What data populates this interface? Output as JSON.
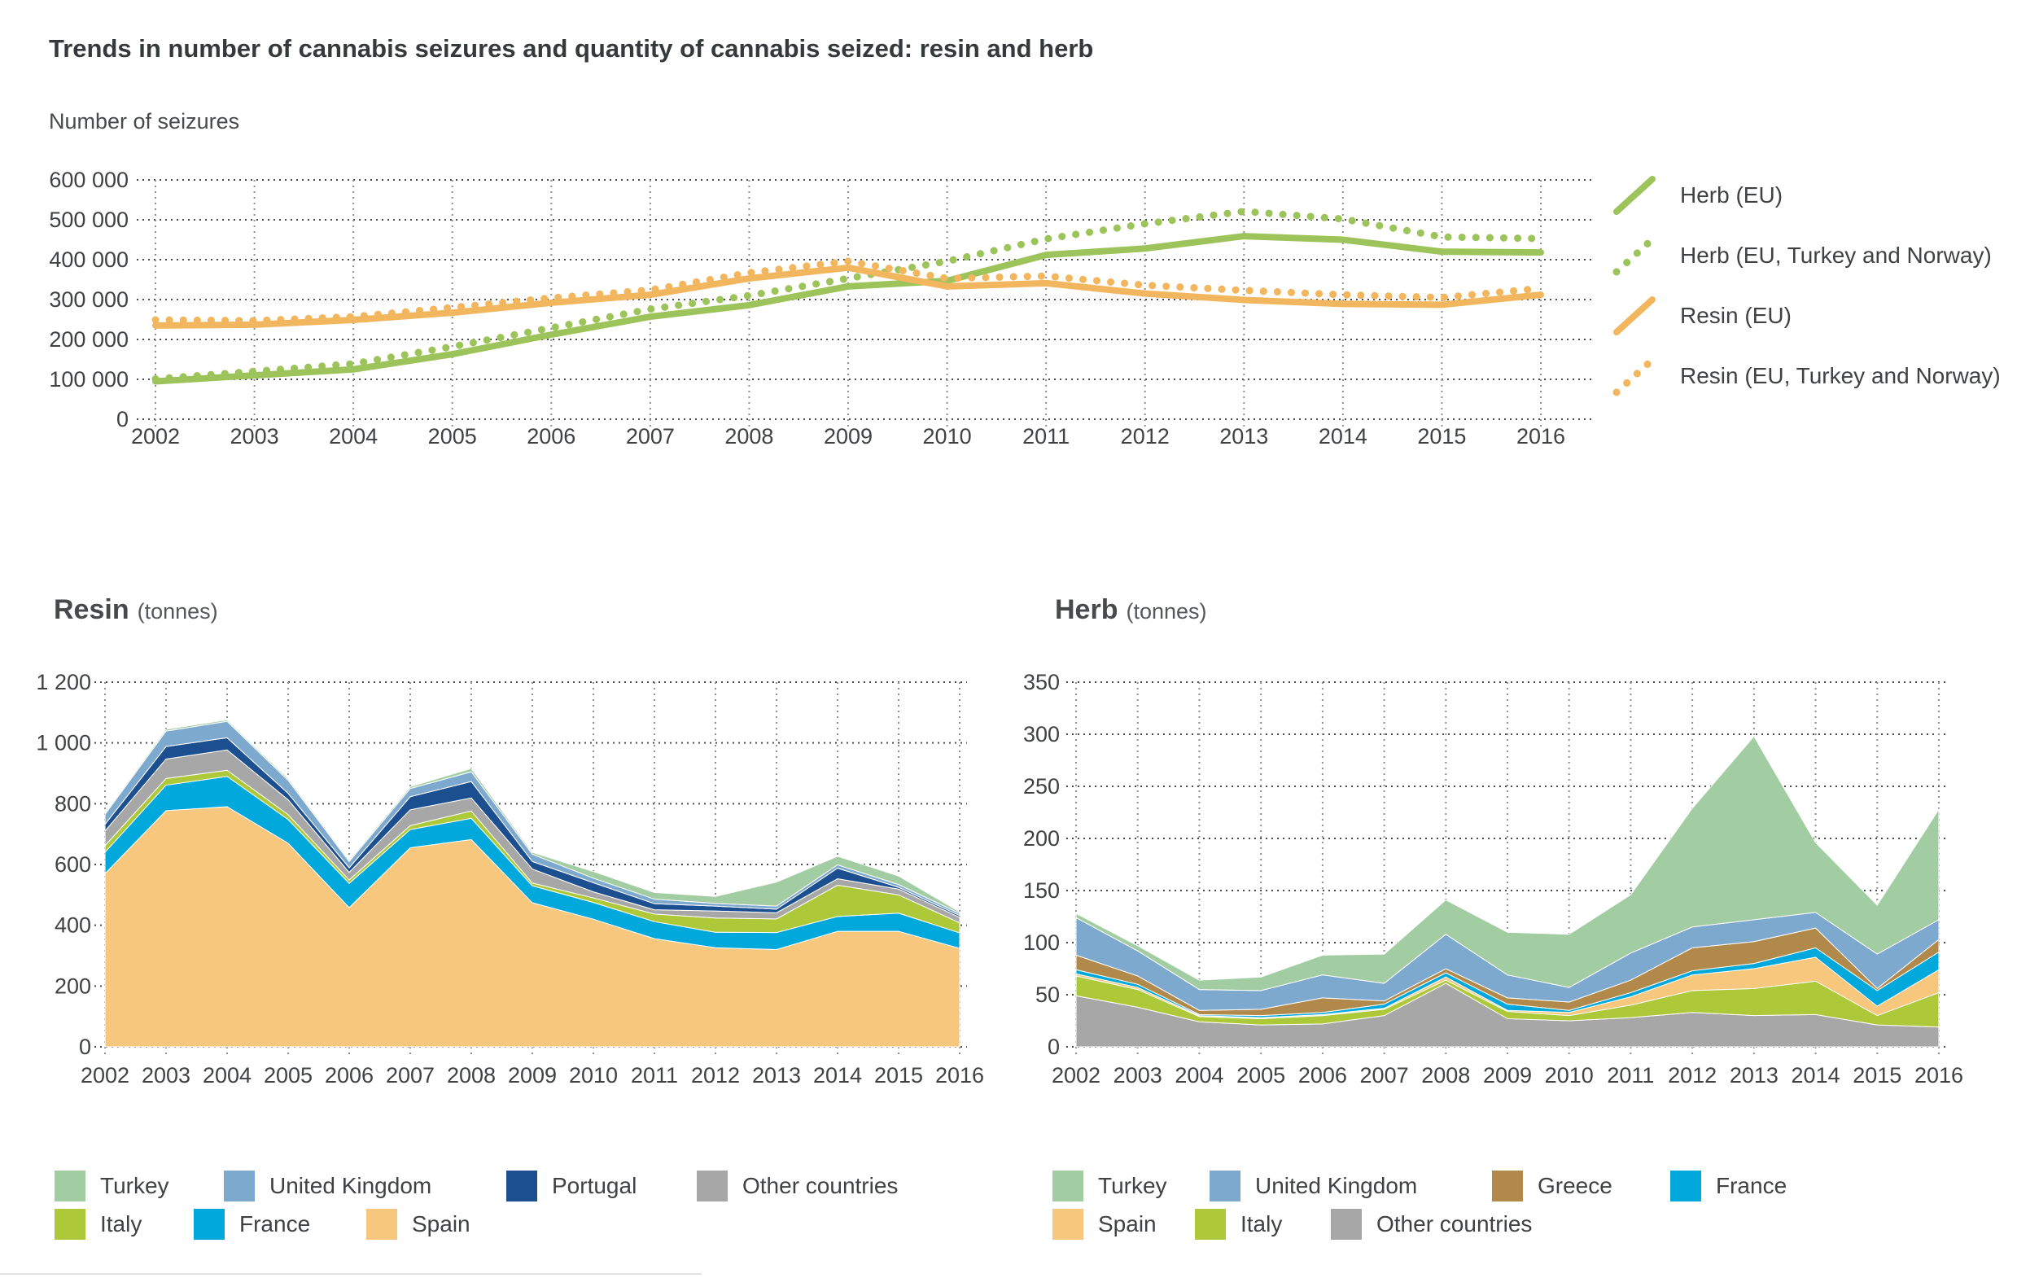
{
  "page": {
    "title": "Trends in number of cannabis seizures and quantity of cannabis seized: resin and herb"
  },
  "chart_data": [
    {
      "id": "seizures",
      "type": "line",
      "axis_label": "Number of seizures",
      "ylim": [
        0,
        600000
      ],
      "ytick_labels": [
        "600 000",
        "500 000",
        "400 000",
        "300 000",
        "200 000",
        "100 000",
        "0"
      ],
      "grid": "dotted",
      "legend_position": "right",
      "years": [
        2002,
        2003,
        2004,
        2005,
        2006,
        2007,
        2008,
        2009,
        2010,
        2011,
        2012,
        2013,
        2014,
        2015,
        2016
      ],
      "series": [
        {
          "name": "Herb (EU)",
          "line_style": "solid",
          "color": "#9dc45b",
          "values": [
            95000,
            110000,
            125000,
            163000,
            212000,
            257000,
            286000,
            333000,
            347000,
            412000,
            428000,
            459000,
            450000,
            420000,
            418000
          ]
        },
        {
          "name": "Herb (EU, Turkey and Norway)",
          "line_style": "dotted",
          "color": "#9dc45b",
          "values": [
            101000,
            120000,
            139000,
            182000,
            229000,
            276000,
            310000,
            353000,
            396000,
            452000,
            490000,
            521000,
            502000,
            457000,
            453000
          ]
        },
        {
          "name": "Resin (EU)",
          "line_style": "solid",
          "color": "#f2b65e",
          "values": [
            235000,
            237000,
            249000,
            267000,
            292000,
            312000,
            353000,
            380000,
            333000,
            341000,
            315000,
            299000,
            289000,
            287000,
            312000
          ]
        },
        {
          "name": "Resin (EU, Turkey and Norway)",
          "line_style": "dotted",
          "color": "#f2b65e",
          "values": [
            249000,
            247000,
            257000,
            280000,
            304000,
            324000,
            367000,
            396000,
            353000,
            359000,
            336000,
            323000,
            312000,
            305000,
            328000
          ]
        }
      ]
    },
    {
      "id": "resin",
      "type": "area",
      "title": "Resin",
      "unit": "(tonnes)",
      "ylim": [
        0,
        1200
      ],
      "ytick_labels": [
        "1 200",
        "1 000",
        "800",
        "600",
        "400",
        "200",
        "0"
      ],
      "grid": "dotted",
      "years": [
        2002,
        2003,
        2004,
        2005,
        2006,
        2007,
        2008,
        2009,
        2010,
        2011,
        2012,
        2013,
        2014,
        2015,
        2016
      ],
      "stack_bottom_to_top": [
        {
          "name": "Spain",
          "color": "#f6c77c",
          "values": [
            570,
            777,
            790,
            670,
            458,
            655,
            682,
            474,
            420,
            356,
            326,
            320,
            380,
            380,
            324
          ]
        },
        {
          "name": "France",
          "color": "#00a8dc",
          "values": [
            70,
            84,
            100,
            78,
            80,
            60,
            70,
            56,
            55,
            56,
            51,
            56,
            49,
            60,
            51
          ]
        },
        {
          "name": "Italy",
          "color": "#adc838",
          "values": [
            22,
            22,
            20,
            16,
            11,
            13,
            24,
            9,
            15,
            25,
            47,
            45,
            103,
            60,
            33
          ]
        },
        {
          "name": "Other countries",
          "color": "#a7a7a7",
          "values": [
            48,
            64,
            67,
            49,
            25,
            52,
            43,
            46,
            20,
            14,
            23,
            20,
            21,
            19,
            18
          ]
        },
        {
          "name": "Portugal",
          "color": "#1b4f90",
          "values": [
            22,
            41,
            40,
            21,
            15,
            43,
            54,
            25,
            30,
            20,
            16,
            12,
            35,
            6,
            6
          ]
        },
        {
          "name": "United Kingdom",
          "color": "#7ea9ce",
          "values": [
            33,
            51,
            54,
            43,
            21,
            27,
            32,
            24,
            15,
            15,
            9,
            10,
            11,
            9,
            7
          ]
        },
        {
          "name": "Turkey",
          "color": "#a2cda2",
          "values": [
            5,
            6,
            5,
            6,
            5,
            6,
            11,
            6,
            22,
            22,
            23,
            79,
            28,
            28,
            5
          ]
        }
      ],
      "legend_rows": [
        [
          {
            "label": "Turkey",
            "color": "#a2cda2"
          },
          {
            "label": "United Kingdom",
            "color": "#7ea9ce"
          },
          {
            "label": "Portugal",
            "color": "#1b4f90"
          },
          {
            "label": "Other countries",
            "color": "#a7a7a7"
          }
        ],
        [
          {
            "label": "Italy",
            "color": "#adc838"
          },
          {
            "label": "France",
            "color": "#00a8dc"
          },
          {
            "label": "Spain",
            "color": "#f6c77c"
          }
        ]
      ]
    },
    {
      "id": "herb",
      "type": "area",
      "title": "Herb",
      "unit": "(tonnes)",
      "ylim": [
        0,
        350
      ],
      "ytick_labels": [
        "350",
        "300",
        "250",
        "200",
        "150",
        "100",
        "50",
        "0"
      ],
      "grid": "dotted",
      "years": [
        2002,
        2003,
        2004,
        2005,
        2006,
        2007,
        2008,
        2009,
        2010,
        2011,
        2012,
        2013,
        2014,
        2015,
        2016
      ],
      "stack_bottom_to_top": [
        {
          "name": "Other countries",
          "color": "#a7a7a7",
          "values": [
            49,
            38,
            24,
            21,
            22,
            30,
            61,
            27,
            25,
            28,
            33,
            30,
            31,
            21,
            19
          ]
        },
        {
          "name": "Italy",
          "color": "#adc838",
          "values": [
            19,
            17,
            5,
            6,
            8,
            6,
            3,
            7,
            5,
            12,
            21,
            26,
            32,
            9,
            33
          ]
        },
        {
          "name": "Spain",
          "color": "#f6c77c",
          "values": [
            2,
            2,
            1,
            1,
            1,
            1,
            3,
            1,
            3,
            8,
            15,
            19,
            23,
            9,
            22
          ]
        },
        {
          "name": "France",
          "color": "#00a8dc",
          "values": [
            4,
            3,
            1,
            2,
            2,
            4,
            4,
            6,
            2,
            4,
            4,
            5,
            9,
            15,
            17
          ]
        },
        {
          "name": "Greece",
          "color": "#b1894b",
          "values": [
            14,
            8,
            4,
            6,
            14,
            3,
            4,
            6,
            8,
            12,
            22,
            21,
            19,
            2,
            12
          ]
        },
        {
          "name": "United Kingdom",
          "color": "#7ea9ce",
          "values": [
            36,
            24,
            20,
            18,
            22,
            17,
            33,
            22,
            14,
            26,
            20,
            21,
            15,
            33,
            19
          ]
        },
        {
          "name": "Turkey",
          "color": "#a2cda2",
          "values": [
            4,
            5,
            9,
            13,
            19,
            28,
            33,
            41,
            51,
            56,
            114,
            176,
            67,
            47,
            106
          ]
        }
      ],
      "legend_rows": [
        [
          {
            "label": "Turkey",
            "color": "#a2cda2"
          },
          {
            "label": "United Kingdom",
            "color": "#7ea9ce"
          },
          {
            "label": "Greece",
            "color": "#b1894b"
          },
          {
            "label": "France",
            "color": "#00a8dc"
          }
        ],
        [
          {
            "label": "Spain",
            "color": "#f6c77c"
          },
          {
            "label": "Italy",
            "color": "#adc838"
          },
          {
            "label": "Other countries",
            "color": "#a7a7a7"
          }
        ]
      ]
    }
  ]
}
